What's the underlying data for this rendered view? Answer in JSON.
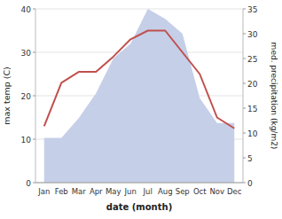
{
  "chart_data": {
    "type": "line",
    "xlabel": "date (month)",
    "ylabel": "max temp (C)",
    "y2label": "med. precipitation (kg/m2)",
    "categories": [
      "Jan",
      "Feb",
      "Mar",
      "Apr",
      "May",
      "Jun",
      "Jul",
      "Aug",
      "Sep",
      "Oct",
      "Nov",
      "Dec"
    ],
    "series": [
      {
        "type": "area",
        "axis": "y2",
        "color": "#c5cfe8",
        "values": [
          9,
          9,
          13,
          18,
          25,
          28,
          35,
          33,
          30,
          17,
          12,
          12
        ]
      },
      {
        "type": "line",
        "color": "#c0504d",
        "values": [
          13,
          23,
          25.5,
          25.5,
          29,
          33,
          35,
          35,
          30,
          25,
          15,
          12.5
        ]
      }
    ],
    "ylim": [
      0,
      40
    ],
    "yticks": [
      0,
      10,
      20,
      30,
      40
    ],
    "y2lim": [
      0,
      35
    ],
    "y2ticks": [
      0,
      5,
      10,
      15,
      20,
      25,
      30,
      35
    ],
    "grid": true
  }
}
